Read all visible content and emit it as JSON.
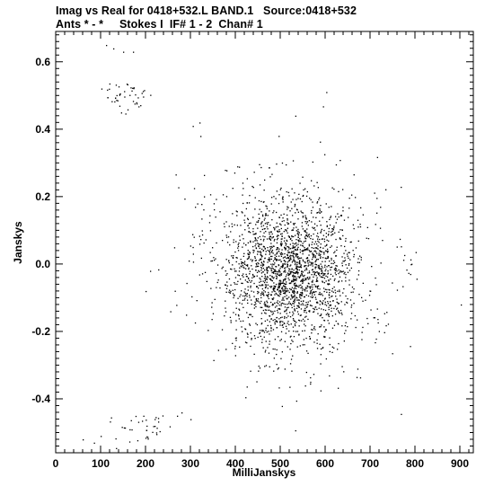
{
  "title_line1": "Imag vs Real for 0418+532.L BAND.1   Source:0418+532",
  "title_line2": "Ants * - *     Stokes I  IF# 1 - 2  Chan# 1",
  "chart_data": {
    "type": "scatter",
    "title": "Imag vs Real for 0418+532.L BAND.1   Source:0418+532",
    "subtitle": "Ants * - *     Stokes I  IF# 1 - 2  Chan# 1",
    "xlabel": "MilliJanskys",
    "ylabel": "Janskys",
    "xlim": [
      0,
      930
    ],
    "ylim": [
      -0.56,
      0.69
    ],
    "xticks": [
      0,
      100,
      200,
      300,
      400,
      500,
      600,
      700,
      800,
      900
    ],
    "yticks": [
      -0.4,
      -0.2,
      0.0,
      0.2,
      0.4,
      0.6
    ],
    "ytick_labels": [
      "-0.4",
      "-0.2",
      "0.0",
      "0.2",
      "0.4",
      "0.6"
    ],
    "grid": false,
    "point_color": "#000000",
    "main_cluster": {
      "center": [
        520,
        -0.02
      ],
      "spread": [
        70,
        0.1
      ],
      "count": 2300
    },
    "outlier_groups": [
      {
        "center": [
          160,
          0.5
        ],
        "spread": [
          25,
          0.025
        ],
        "count": 45
      },
      {
        "center": [
          175,
          -0.49
        ],
        "spread": [
          40,
          0.025
        ],
        "count": 35
      },
      {
        "center": [
          470,
          0.28
        ],
        "spread": [
          30,
          0.015
        ],
        "count": 6
      },
      {
        "center": [
          460,
          -0.3
        ],
        "spread": [
          30,
          0.02
        ],
        "count": 8
      },
      {
        "center": [
          750,
          -0.22
        ],
        "spread": [
          20,
          0.02
        ],
        "count": 4
      },
      {
        "center": [
          780,
          0.0
        ],
        "spread": [
          20,
          0.03
        ],
        "count": 6
      }
    ],
    "isolated_points": [
      [
        112,
        0.65
      ],
      [
        128,
        0.64
      ],
      [
        150,
        0.63
      ],
      [
        172,
        0.63
      ],
      [
        305,
        0.41
      ],
      [
        320,
        0.42
      ],
      [
        322,
        0.38
      ],
      [
        315,
        0.18
      ],
      [
        310,
        0.17
      ],
      [
        200,
        -0.08
      ],
      [
        210,
        -0.02
      ],
      [
        902,
        -0.12
      ],
      [
        270,
        -0.45
      ],
      [
        280,
        -0.44
      ],
      [
        300,
        -0.46
      ],
      [
        60,
        -0.52
      ],
      [
        85,
        -0.53
      ],
      [
        100,
        -0.51
      ],
      [
        555,
        -0.36
      ],
      [
        255,
        -0.14
      ],
      [
        290,
        -0.15
      ],
      [
        220,
        -0.48
      ],
      [
        195,
        -0.45
      ]
    ]
  }
}
